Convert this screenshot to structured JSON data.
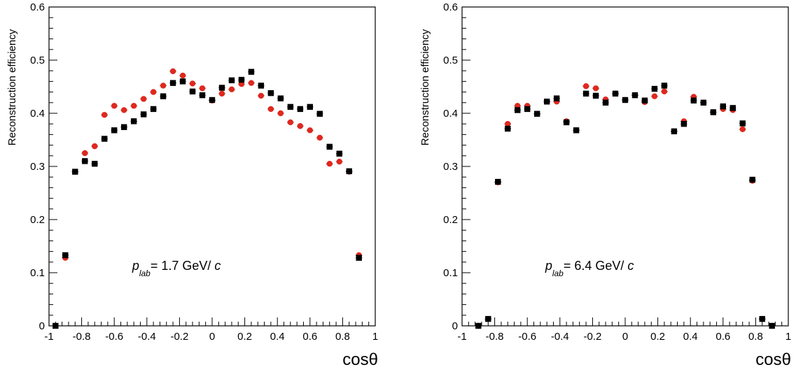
{
  "chart_data": [
    {
      "type": "scatter",
      "xlabel": "cosθ",
      "ylabel": "Reconstruction efficiency",
      "xlim": [
        -1,
        1
      ],
      "ylim": [
        0,
        0.6
      ],
      "xticks": [
        "-1",
        "-0.8",
        "-0.6",
        "-0.4",
        "-0.2",
        "0",
        "0.2",
        "0.4",
        "0.6",
        "0.8",
        "1"
      ],
      "yticks": [
        "0",
        "0.1",
        "0.2",
        "0.3",
        "0.4",
        "0.5",
        "0.6"
      ],
      "annotation": {
        "p": "p",
        "sub": "lab",
        "text": "= 1.7 GeV/ ",
        "unit": "c"
      },
      "x": [
        -0.96,
        -0.9,
        -0.84,
        -0.78,
        -0.72,
        -0.66,
        -0.6,
        -0.54,
        -0.48,
        -0.42,
        -0.36,
        -0.3,
        -0.24,
        -0.18,
        -0.12,
        -0.06,
        0,
        0.06,
        0.12,
        0.18,
        0.24,
        0.3,
        0.36,
        0.42,
        0.48,
        0.54,
        0.6,
        0.66,
        0.72,
        0.78,
        0.84,
        0.9
      ],
      "series": [
        {
          "color": "#e0281e",
          "marker": "circle",
          "values": [
            null,
            0.128,
            0.29,
            0.325,
            0.338,
            0.397,
            0.414,
            0.406,
            0.414,
            0.427,
            0.44,
            0.452,
            0.479,
            0.471,
            0.456,
            0.447,
            0.424,
            0.437,
            0.445,
            0.455,
            0.457,
            0.433,
            0.408,
            0.4,
            0.383,
            0.376,
            0.368,
            0.354,
            0.305,
            0.309,
            0.29,
            0.133
          ]
        },
        {
          "color": "#000000",
          "marker": "square",
          "values": [
            0.0,
            0.133,
            0.29,
            0.31,
            0.305,
            0.352,
            0.368,
            0.374,
            0.385,
            0.398,
            0.408,
            0.432,
            0.457,
            0.46,
            0.441,
            0.434,
            0.425,
            0.448,
            0.462,
            0.463,
            0.478,
            0.452,
            0.438,
            0.428,
            0.412,
            0.408,
            0.412,
            0.399,
            0.337,
            0.324,
            0.291,
            0.128
          ]
        }
      ]
    },
    {
      "type": "scatter",
      "xlabel": "cosθ",
      "ylabel": "Reconstruction efficiency",
      "xlim": [
        -1,
        1
      ],
      "ylim": [
        0,
        0.6
      ],
      "xticks": [
        "-1",
        "-0.8",
        "-0.6",
        "-0.4",
        "-0.2",
        "0",
        "0.2",
        "0.4",
        "0.6",
        "0.8",
        "1"
      ],
      "yticks": [
        "0",
        "0.1",
        "0.2",
        "0.3",
        "0.4",
        "0.5",
        "0.6"
      ],
      "annotation": {
        "p": "p",
        "sub": "lab",
        "text": "= 6.4 GeV/ ",
        "unit": "c"
      },
      "x": [
        -0.9,
        -0.84,
        -0.78,
        -0.72,
        -0.66,
        -0.6,
        -0.54,
        -0.48,
        -0.42,
        -0.36,
        -0.3,
        -0.24,
        -0.18,
        -0.12,
        -0.06,
        0,
        0.06,
        0.12,
        0.18,
        0.24,
        0.3,
        0.36,
        0.42,
        0.48,
        0.54,
        0.6,
        0.66,
        0.72,
        0.78,
        0.84,
        0.9
      ],
      "series": [
        {
          "color": "#e0281e",
          "marker": "circle",
          "values": [
            0.0,
            0.013,
            0.27,
            0.38,
            0.414,
            0.414,
            0.399,
            0.422,
            0.422,
            0.385,
            0.368,
            0.451,
            0.447,
            0.426,
            0.437,
            0.425,
            0.434,
            0.421,
            0.432,
            0.441,
            0.366,
            0.385,
            0.431,
            0.42,
            0.402,
            0.408,
            0.406,
            0.37,
            0.273,
            0.013,
            0.0
          ]
        },
        {
          "color": "#000000",
          "marker": "square",
          "values": [
            0.0,
            0.013,
            0.271,
            0.371,
            0.406,
            0.408,
            0.399,
            0.422,
            0.428,
            0.383,
            0.368,
            0.437,
            0.433,
            0.42,
            0.437,
            0.425,
            0.434,
            0.424,
            0.446,
            0.452,
            0.366,
            0.38,
            0.424,
            0.42,
            0.402,
            0.413,
            0.41,
            0.381,
            0.275,
            0.013,
            0.0
          ]
        }
      ]
    }
  ]
}
